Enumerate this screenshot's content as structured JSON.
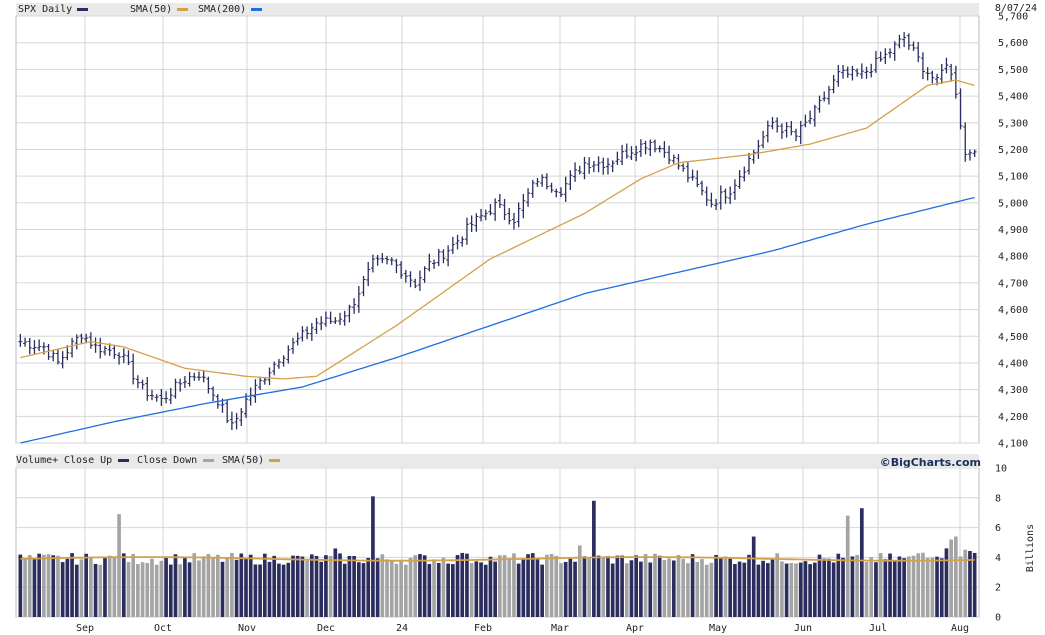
{
  "date": "8/07/24",
  "credit": "©BigCharts.com",
  "colors": {
    "price_bar": "#2b2d5e",
    "sma50": "#d4a04a",
    "sma200": "#1f6fe0",
    "vol_up": "#2b2d5e",
    "vol_down": "#a4a4a4",
    "grid": "#d6d6d6"
  },
  "legend": {
    "symbol": "SPX Daily",
    "sma50": "SMA(50)",
    "sma200": "SMA(200)",
    "volume": "Volume+",
    "close_up": "Close Up",
    "close_down": "Close Down",
    "vol_sma": "SMA(50)"
  },
  "chart_data": [
    {
      "type": "line",
      "title": "SPX Daily",
      "months": [
        "Sep",
        "Oct",
        "Nov",
        "Dec",
        "24",
        "Feb",
        "Mar",
        "Apr",
        "May",
        "Jun",
        "Jul",
        "Aug"
      ],
      "ylim": [
        4100,
        5700
      ],
      "yticks": [
        "5,700",
        "5,600",
        "5,500",
        "5,400",
        "5,300",
        "5,200",
        "5,100",
        "5,000",
        "4,900",
        "4,800",
        "4,700",
        "4,600",
        "4,500",
        "4,400",
        "4,300",
        "4,200",
        "4,100"
      ],
      "price_close_keypoints": [
        [
          0,
          4480
        ],
        [
          5,
          4460
        ],
        [
          8,
          4400
        ],
        [
          11,
          4470
        ],
        [
          13,
          4510
        ],
        [
          16,
          4460
        ],
        [
          21,
          4440
        ],
        [
          26,
          4300
        ],
        [
          30,
          4260
        ],
        [
          35,
          4340
        ],
        [
          38,
          4360
        ],
        [
          42,
          4260
        ],
        [
          45,
          4160
        ],
        [
          48,
          4260
        ],
        [
          55,
          4420
        ],
        [
          63,
          4550
        ],
        [
          67,
          4560
        ],
        [
          70,
          4600
        ],
        [
          75,
          4770
        ],
        [
          79,
          4780
        ],
        [
          84,
          4700
        ],
        [
          87,
          4770
        ],
        [
          92,
          4840
        ],
        [
          96,
          4920
        ],
        [
          101,
          4990
        ],
        [
          105,
          4940
        ],
        [
          110,
          5090
        ],
        [
          115,
          5050
        ],
        [
          120,
          5150
        ],
        [
          125,
          5150
        ],
        [
          130,
          5200
        ],
        [
          134,
          5230
        ],
        [
          138,
          5180
        ],
        [
          143,
          5080
        ],
        [
          147,
          5000
        ],
        [
          151,
          5050
        ],
        [
          156,
          5190
        ],
        [
          160,
          5300
        ],
        [
          165,
          5250
        ],
        [
          169,
          5340
        ],
        [
          174,
          5480
        ],
        [
          179,
          5480
        ],
        [
          184,
          5550
        ],
        [
          188,
          5620
        ],
        [
          192,
          5510
        ],
        [
          195,
          5450
        ],
        [
          197,
          5530
        ],
        [
          199,
          5420
        ],
        [
          201,
          5180
        ],
        [
          203,
          5210
        ]
      ],
      "series": [
        {
          "name": "SMA(50)",
          "values_keypoints": [
            [
              0,
              4420
            ],
            [
              15,
              4480
            ],
            [
              22,
              4460
            ],
            [
              35,
              4380
            ],
            [
              48,
              4350
            ],
            [
              56,
              4340
            ],
            [
              63,
              4350
            ],
            [
              80,
              4540
            ],
            [
              100,
              4790
            ],
            [
              120,
              4960
            ],
            [
              132,
              5090
            ],
            [
              140,
              5150
            ],
            [
              155,
              5180
            ],
            [
              168,
              5220
            ],
            [
              180,
              5280
            ],
            [
              193,
              5440
            ],
            [
              199,
              5460
            ],
            [
              203,
              5440
            ]
          ]
        },
        {
          "name": "SMA(200)",
          "values_keypoints": [
            [
              0,
              4100
            ],
            [
              20,
              4180
            ],
            [
              40,
              4250
            ],
            [
              60,
              4310
            ],
            [
              80,
              4420
            ],
            [
              100,
              4540
            ],
            [
              120,
              4660
            ],
            [
              140,
              4740
            ],
            [
              160,
              4820
            ],
            [
              180,
              4920
            ],
            [
              203,
              5020
            ]
          ]
        }
      ]
    },
    {
      "type": "bar",
      "title": "Volume",
      "ylabel": "Billions",
      "ylim": [
        0,
        10
      ],
      "yticks": [
        "10",
        "8",
        "6",
        "4",
        "2",
        "0"
      ],
      "sma50": 3.9,
      "volume_spikes": [
        [
          21,
          6.9
        ],
        [
          67,
          4.6
        ],
        [
          75,
          8.1
        ],
        [
          94,
          4.3
        ],
        [
          119,
          4.8
        ],
        [
          122,
          7.8
        ],
        [
          156,
          5.4
        ],
        [
          176,
          6.8
        ],
        [
          179,
          7.3
        ],
        [
          198,
          5.2
        ],
        [
          199,
          5.4
        ]
      ]
    }
  ]
}
